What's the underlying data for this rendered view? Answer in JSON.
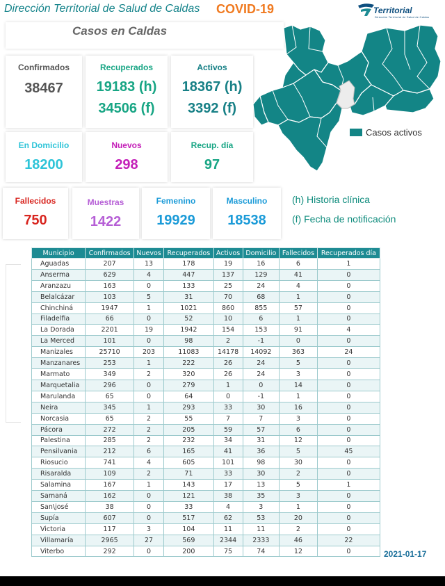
{
  "header": {
    "title": "Dirección Territorial de Salud de Caldas",
    "covid": "COVID-19",
    "logo_text": "Territorial",
    "logo_sub": "Dirección Territorial de Salud de Caldas"
  },
  "panel_title": "Casos en Caldas",
  "cards": {
    "confirmados": {
      "label": "Confirmados",
      "value": "38467"
    },
    "recuperados": {
      "label": "Recuperados",
      "value_h": "19183 (h)",
      "value_f": "34506 (f)"
    },
    "activos": {
      "label": "Activos",
      "value_h": "18367 (h)",
      "value_f": "3392 (f)"
    },
    "domicilio": {
      "label": "En Domicilio",
      "value": "18200"
    },
    "nuevos": {
      "label": "Nuevos",
      "value": "298"
    },
    "recup_dia": {
      "label": "Recup. día",
      "value": "97"
    },
    "fallecidos": {
      "label": "Fallecidos",
      "value": "750"
    },
    "muestras": {
      "label": "Muestras",
      "value": "1422"
    },
    "femenino": {
      "label": "Femenino",
      "value": "19929"
    },
    "masculino": {
      "label": "Masculino",
      "value": "18538"
    }
  },
  "notes": {
    "h": "(h) Historia clínica",
    "f": "(f) Fecha de notificación"
  },
  "map": {
    "legend": "Casos activos",
    "fill": "#138586",
    "missing_fill": "#ececec"
  },
  "table": {
    "headers": [
      "Municipio",
      "Confirmados",
      "Nuevos",
      "Recuperados",
      "Activos",
      "Domicilio",
      "Fallecidos",
      "Recuperados día"
    ],
    "rows": [
      [
        "Aguadas",
        "207",
        "13",
        "178",
        "19",
        "16",
        "6",
        "1"
      ],
      [
        "Anserma",
        "629",
        "4",
        "447",
        "137",
        "129",
        "41",
        "0"
      ],
      [
        "Aranzazu",
        "163",
        "0",
        "133",
        "25",
        "24",
        "4",
        "0"
      ],
      [
        "Belalcázar",
        "103",
        "5",
        "31",
        "70",
        "68",
        "1",
        "0"
      ],
      [
        "Chinchiná",
        "1947",
        "1",
        "1021",
        "860",
        "855",
        "57",
        "0"
      ],
      [
        "Filadelfia",
        "66",
        "0",
        "52",
        "10",
        "6",
        "1",
        "0"
      ],
      [
        "La Dorada",
        "2201",
        "19",
        "1942",
        "154",
        "153",
        "91",
        "4"
      ],
      [
        "La Merced",
        "101",
        "0",
        "98",
        "2",
        "-1",
        "0",
        "0"
      ],
      [
        "Manizales",
        "25710",
        "203",
        "11083",
        "14178",
        "14092",
        "363",
        "24"
      ],
      [
        "Manzanares",
        "253",
        "1",
        "222",
        "26",
        "24",
        "5",
        "0"
      ],
      [
        "Marmato",
        "349",
        "2",
        "320",
        "26",
        "24",
        "3",
        "0"
      ],
      [
        "Marquetalia",
        "296",
        "0",
        "279",
        "1",
        "0",
        "14",
        "0"
      ],
      [
        "Marulanda",
        "65",
        "0",
        "64",
        "0",
        "-1",
        "1",
        "0"
      ],
      [
        "Neira",
        "345",
        "1",
        "293",
        "33",
        "30",
        "16",
        "0"
      ],
      [
        "Norcasia",
        "65",
        "2",
        "55",
        "7",
        "7",
        "3",
        "0"
      ],
      [
        "Pácora",
        "272",
        "2",
        "205",
        "59",
        "57",
        "6",
        "0"
      ],
      [
        "Palestina",
        "285",
        "2",
        "232",
        "34",
        "31",
        "12",
        "0"
      ],
      [
        "Pensilvania",
        "212",
        "6",
        "165",
        "41",
        "36",
        "5",
        "45"
      ],
      [
        "Riosucio",
        "741",
        "4",
        "605",
        "101",
        "98",
        "30",
        "0"
      ],
      [
        "Risaralda",
        "109",
        "2",
        "71",
        "33",
        "30",
        "2",
        "0"
      ],
      [
        "Salamina",
        "167",
        "1",
        "143",
        "17",
        "13",
        "5",
        "1"
      ],
      [
        "Samaná",
        "162",
        "0",
        "121",
        "38",
        "35",
        "3",
        "0"
      ],
      [
        "San\\josé",
        "38",
        "0",
        "33",
        "4",
        "3",
        "1",
        "0"
      ],
      [
        "Supía",
        "607",
        "0",
        "517",
        "62",
        "53",
        "20",
        "0"
      ],
      [
        "Victoria",
        "117",
        "3",
        "104",
        "11",
        "11",
        "2",
        "0"
      ],
      [
        "Villamaría",
        "2965",
        "27",
        "569",
        "2344",
        "2333",
        "46",
        "22"
      ],
      [
        "Viterbo",
        "292",
        "0",
        "200",
        "75",
        "74",
        "12",
        "0"
      ]
    ]
  },
  "date": "2021-01-17",
  "colors": {
    "teal": "#1d8b93",
    "confirmados": "#555555",
    "recuperados": "#17a584",
    "activos": "#178086",
    "domicilio": "#2ec4d8",
    "nuevos": "#c41fb8",
    "recup_dia": "#17a584",
    "fallecidos": "#d8251f",
    "muestras": "#b65fd6",
    "femenino": "#1b9bd8",
    "masculino": "#1b9bd8",
    "covid": "#f07a20"
  }
}
